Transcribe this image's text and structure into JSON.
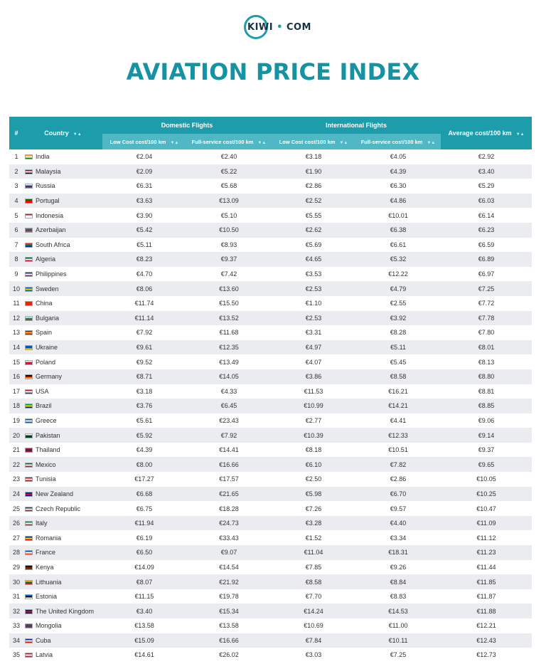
{
  "brand": {
    "name_left": "KIWI",
    "name_right": "COM",
    "accent": "#1d9cab"
  },
  "title": "AVIATION PRICE INDEX",
  "table": {
    "headers": {
      "rank": "#",
      "country": "Country",
      "domestic": "Domestic Flights",
      "international": "International Flights",
      "average": "Average cost/100 km",
      "low_cost": "Low Cost cost/100 km",
      "full_service": "Full-service cost/100 km"
    },
    "rows": [
      {
        "rank": "1",
        "country": "India",
        "dom_low": "€2.04",
        "dom_full": "€2.40",
        "int_low": "€3.18",
        "int_full": "€4.05",
        "avg": "€2.92",
        "flag": [
          "#ff9933",
          "#ffffff",
          "#138808"
        ]
      },
      {
        "rank": "2",
        "country": "Malaysia",
        "dom_low": "€2.09",
        "dom_full": "€5.22",
        "int_low": "€1.90",
        "int_full": "€4.39",
        "avg": "€3.40",
        "flag": [
          "#cc0001",
          "#ffffff",
          "#010066"
        ]
      },
      {
        "rank": "3",
        "country": "Russia",
        "dom_low": "€6.31",
        "dom_full": "€5.68",
        "int_low": "€2.86",
        "int_full": "€6.30",
        "avg": "€5.29",
        "flag": [
          "#ffffff",
          "#0039a6",
          "#d52b1e"
        ]
      },
      {
        "rank": "4",
        "country": "Portugal",
        "dom_low": "€3.63",
        "dom_full": "€13.09",
        "int_low": "€2.52",
        "int_full": "€4.86",
        "avg": "€6.03",
        "flag": [
          "#006600",
          "#ff0000",
          "#ff0000"
        ]
      },
      {
        "rank": "5",
        "country": "Indonesia",
        "dom_low": "€3.90",
        "dom_full": "€5.10",
        "int_low": "€5.55",
        "int_full": "€10.01",
        "avg": "€6.14",
        "flag": [
          "#ce1126",
          "#ffffff",
          "#ffffff"
        ]
      },
      {
        "rank": "6",
        "country": "Azerbaijan",
        "dom_low": "€5.42",
        "dom_full": "€10.50",
        "int_low": "€2.62",
        "int_full": "€6.38",
        "avg": "€6.23",
        "flag": [
          "#0092bc",
          "#e4002b",
          "#00af66"
        ]
      },
      {
        "rank": "7",
        "country": "South Africa",
        "dom_low": "€5.11",
        "dom_full": "€8.93",
        "int_low": "€5.69",
        "int_full": "€6.61",
        "avg": "€6.59",
        "flag": [
          "#de3831",
          "#007a4d",
          "#002395"
        ]
      },
      {
        "rank": "8",
        "country": "Algeria",
        "dom_low": "€8.23",
        "dom_full": "€9.37",
        "int_low": "€4.65",
        "int_full": "€5.32",
        "avg": "€6.89",
        "flag": [
          "#006233",
          "#ffffff",
          "#d21034"
        ]
      },
      {
        "rank": "9",
        "country": "Philippines",
        "dom_low": "€4.70",
        "dom_full": "€7.42",
        "int_low": "€3.53",
        "int_full": "€12.22",
        "avg": "€6.97",
        "flag": [
          "#0038a8",
          "#ffffff",
          "#ce1126"
        ]
      },
      {
        "rank": "10",
        "country": "Sweden",
        "dom_low": "€8.06",
        "dom_full": "€13.60",
        "int_low": "€2.53",
        "int_full": "€4.79",
        "avg": "€7.25",
        "flag": [
          "#006aa7",
          "#fecc00",
          "#006aa7"
        ]
      },
      {
        "rank": "11",
        "country": "China",
        "dom_low": "€11.74",
        "dom_full": "€15.50",
        "int_low": "€1.10",
        "int_full": "€2.55",
        "avg": "€7.72",
        "flag": [
          "#de2910",
          "#de2910",
          "#de2910"
        ]
      },
      {
        "rank": "12",
        "country": "Bulgaria",
        "dom_low": "€11.14",
        "dom_full": "€13.52",
        "int_low": "€2.53",
        "int_full": "€3.92",
        "avg": "€7.78",
        "flag": [
          "#ffffff",
          "#00966e",
          "#d62612"
        ]
      },
      {
        "rank": "13",
        "country": "Spain",
        "dom_low": "€7.92",
        "dom_full": "€11.68",
        "int_low": "€3.31",
        "int_full": "€8.28",
        "avg": "€7.80",
        "flag": [
          "#c60b1e",
          "#ffc400",
          "#c60b1e"
        ]
      },
      {
        "rank": "14",
        "country": "Ukraine",
        "dom_low": "€9.61",
        "dom_full": "€12.35",
        "int_low": "€4.97",
        "int_full": "€5.11",
        "avg": "€8.01",
        "flag": [
          "#0057b7",
          "#0057b7",
          "#ffd700"
        ]
      },
      {
        "rank": "15",
        "country": "Poland",
        "dom_low": "€9.52",
        "dom_full": "€13.49",
        "int_low": "€4.07",
        "int_full": "€5.45",
        "avg": "€8.13",
        "flag": [
          "#ffffff",
          "#dc143c",
          "#dc143c"
        ]
      },
      {
        "rank": "16",
        "country": "Germany",
        "dom_low": "€8.71",
        "dom_full": "€14.05",
        "int_low": "€3.86",
        "int_full": "€8.58",
        "avg": "€8.80",
        "flag": [
          "#000000",
          "#dd0000",
          "#ffce00"
        ]
      },
      {
        "rank": "17",
        "country": "USA",
        "dom_low": "€3.18",
        "dom_full": "€4.33",
        "int_low": "€11.53",
        "int_full": "€16.21",
        "avg": "€8.81",
        "flag": [
          "#b22234",
          "#ffffff",
          "#3c3b6e"
        ]
      },
      {
        "rank": "18",
        "country": "Brazil",
        "dom_low": "€3.76",
        "dom_full": "€6.45",
        "int_low": "€10.99",
        "int_full": "€14.21",
        "avg": "€8.85",
        "flag": [
          "#009c3b",
          "#ffdf00",
          "#002776"
        ]
      },
      {
        "rank": "19",
        "country": "Greece",
        "dom_low": "€5.61",
        "dom_full": "€23.43",
        "int_low": "€2.77",
        "int_full": "€4.41",
        "avg": "€9.06",
        "flag": [
          "#0d5eaf",
          "#ffffff",
          "#0d5eaf"
        ]
      },
      {
        "rank": "20",
        "country": "Pakistan",
        "dom_low": "€5.92",
        "dom_full": "€7.92",
        "int_low": "€10.39",
        "int_full": "€12.33",
        "avg": "€9.14",
        "flag": [
          "#ffffff",
          "#01411c",
          "#01411c"
        ]
      },
      {
        "rank": "21",
        "country": "Thailand",
        "dom_low": "€4.39",
        "dom_full": "€14.41",
        "int_low": "€8.18",
        "int_full": "€10.51",
        "avg": "€9.37",
        "flag": [
          "#a51931",
          "#2d2a4a",
          "#a51931"
        ]
      },
      {
        "rank": "22",
        "country": "Mexico",
        "dom_low": "€8.00",
        "dom_full": "€16.66",
        "int_low": "€6.10",
        "int_full": "€7.82",
        "avg": "€9.65",
        "flag": [
          "#006847",
          "#ffffff",
          "#ce1126"
        ]
      },
      {
        "rank": "23",
        "country": "Tunisia",
        "dom_low": "€17.27",
        "dom_full": "€17.57",
        "int_low": "€2.50",
        "int_full": "€2.86",
        "avg": "€10.05",
        "flag": [
          "#e70013",
          "#ffffff",
          "#e70013"
        ]
      },
      {
        "rank": "24",
        "country": "New Zealand",
        "dom_low": "€6.68",
        "dom_full": "€21.65",
        "int_low": "€5.98",
        "int_full": "€6.70",
        "avg": "€10.25",
        "flag": [
          "#00247d",
          "#cc142b",
          "#00247d"
        ]
      },
      {
        "rank": "25",
        "country": "Czech Republic",
        "dom_low": "€6.75",
        "dom_full": "€18.28",
        "int_low": "€7.26",
        "int_full": "€9.57",
        "avg": "€10.47",
        "flag": [
          "#11457e",
          "#ffffff",
          "#d7141a"
        ]
      },
      {
        "rank": "26",
        "country": "Italy",
        "dom_low": "€11.94",
        "dom_full": "€24.73",
        "int_low": "€3.28",
        "int_full": "€4.40",
        "avg": "€11.09",
        "flag": [
          "#009246",
          "#ffffff",
          "#ce2b37"
        ]
      },
      {
        "rank": "27",
        "country": "Romania",
        "dom_low": "€6.19",
        "dom_full": "€33.43",
        "int_low": "€1.52",
        "int_full": "€3.34",
        "avg": "€11.12",
        "flag": [
          "#002b7f",
          "#fcd116",
          "#ce1126"
        ]
      },
      {
        "rank": "28",
        "country": "France",
        "dom_low": "€6.50",
        "dom_full": "€9.07",
        "int_low": "€11.04",
        "int_full": "€18.31",
        "avg": "€11.23",
        "flag": [
          "#0055a4",
          "#ffffff",
          "#ef4135"
        ]
      },
      {
        "rank": "29",
        "country": "Kenya",
        "dom_low": "€14.09",
        "dom_full": "€14.54",
        "int_low": "€7.85",
        "int_full": "€9.26",
        "avg": "€11.44",
        "flag": [
          "#000000",
          "#bb0000",
          "#006600"
        ]
      },
      {
        "rank": "30",
        "country": "Lithuania",
        "dom_low": "€8.07",
        "dom_full": "€21.92",
        "int_low": "€8.58",
        "int_full": "€8.84",
        "avg": "€11.85",
        "flag": [
          "#fdb913",
          "#006a44",
          "#c1272d"
        ]
      },
      {
        "rank": "31",
        "country": "Estonia",
        "dom_low": "€11.15",
        "dom_full": "€19.78",
        "int_low": "€7.70",
        "int_full": "€8.83",
        "avg": "€11.87",
        "flag": [
          "#0072ce",
          "#000000",
          "#ffffff"
        ]
      },
      {
        "rank": "32",
        "country": "The United Kingdom",
        "dom_low": "€3.40",
        "dom_full": "€15.34",
        "int_low": "€14.24",
        "int_full": "€14.53",
        "avg": "€11.88",
        "flag": [
          "#012169",
          "#c8102e",
          "#012169"
        ]
      },
      {
        "rank": "33",
        "country": "Mongolia",
        "dom_low": "€13.58",
        "dom_full": "€13.58",
        "int_low": "€10.69",
        "int_full": "€11.00",
        "avg": "€12.21",
        "flag": [
          "#c4272f",
          "#015197",
          "#c4272f"
        ]
      },
      {
        "rank": "34",
        "country": "Cuba",
        "dom_low": "€15.09",
        "dom_full": "€16.66",
        "int_low": "€7.84",
        "int_full": "€10.11",
        "avg": "€12.43",
        "flag": [
          "#002a8f",
          "#ffffff",
          "#cb1515"
        ]
      },
      {
        "rank": "35",
        "country": "Latvia",
        "dom_low": "€14.61",
        "dom_full": "€26.02",
        "int_low": "€3.03",
        "int_full": "€7.25",
        "avg": "€12.73",
        "flag": [
          "#9e3039",
          "#ffffff",
          "#9e3039"
        ]
      }
    ]
  }
}
